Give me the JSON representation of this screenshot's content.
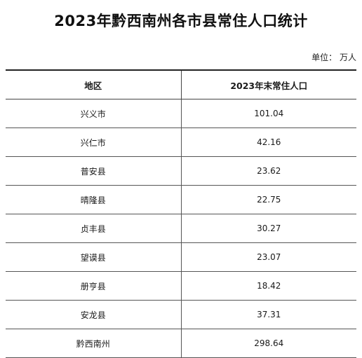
{
  "title": "2023年黔西南州各市县常住人口统计",
  "unit": "单位：  万人",
  "table": {
    "headers": [
      "地区",
      "2023年末常住人口"
    ],
    "rows": [
      {
        "region": "兴义市",
        "population": "101.04"
      },
      {
        "region": "兴仁市",
        "population": "42.16"
      },
      {
        "region": "普安县",
        "population": "23.62"
      },
      {
        "region": "晴隆县",
        "population": "22.75"
      },
      {
        "region": "贞丰县",
        "population": "30.27"
      },
      {
        "region": "望谟县",
        "population": "23.07"
      },
      {
        "region": "册亨县",
        "population": "18.42"
      },
      {
        "region": "安龙县",
        "population": "37.31"
      },
      {
        "region": "黔西南州",
        "population": "298.64"
      }
    ]
  }
}
